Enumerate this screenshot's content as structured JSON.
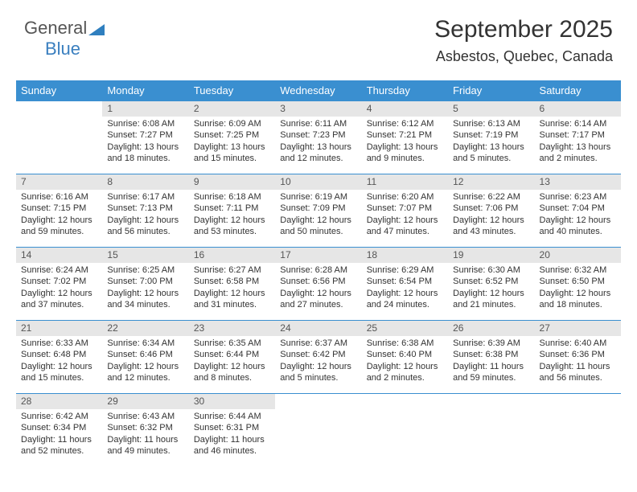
{
  "brand": {
    "part1": "General",
    "part2": "Blue",
    "triangle_color": "#2f7fbf"
  },
  "title": "September 2025",
  "location": "Asbestos, Quebec, Canada",
  "colors": {
    "header_bg": "#3a8fd0",
    "header_fg": "#ffffff",
    "daynum_bg": "#e6e6e6",
    "rule": "#3a8fd0"
  },
  "day_headers": [
    "Sunday",
    "Monday",
    "Tuesday",
    "Wednesday",
    "Thursday",
    "Friday",
    "Saturday"
  ],
  "weeks": [
    [
      {
        "n": "",
        "lines": []
      },
      {
        "n": "1",
        "lines": [
          "Sunrise: 6:08 AM",
          "Sunset: 7:27 PM",
          "Daylight: 13 hours and 18 minutes."
        ]
      },
      {
        "n": "2",
        "lines": [
          "Sunrise: 6:09 AM",
          "Sunset: 7:25 PM",
          "Daylight: 13 hours and 15 minutes."
        ]
      },
      {
        "n": "3",
        "lines": [
          "Sunrise: 6:11 AM",
          "Sunset: 7:23 PM",
          "Daylight: 13 hours and 12 minutes."
        ]
      },
      {
        "n": "4",
        "lines": [
          "Sunrise: 6:12 AM",
          "Sunset: 7:21 PM",
          "Daylight: 13 hours and 9 minutes."
        ]
      },
      {
        "n": "5",
        "lines": [
          "Sunrise: 6:13 AM",
          "Sunset: 7:19 PM",
          "Daylight: 13 hours and 5 minutes."
        ]
      },
      {
        "n": "6",
        "lines": [
          "Sunrise: 6:14 AM",
          "Sunset: 7:17 PM",
          "Daylight: 13 hours and 2 minutes."
        ]
      }
    ],
    [
      {
        "n": "7",
        "lines": [
          "Sunrise: 6:16 AM",
          "Sunset: 7:15 PM",
          "Daylight: 12 hours and 59 minutes."
        ]
      },
      {
        "n": "8",
        "lines": [
          "Sunrise: 6:17 AM",
          "Sunset: 7:13 PM",
          "Daylight: 12 hours and 56 minutes."
        ]
      },
      {
        "n": "9",
        "lines": [
          "Sunrise: 6:18 AM",
          "Sunset: 7:11 PM",
          "Daylight: 12 hours and 53 minutes."
        ]
      },
      {
        "n": "10",
        "lines": [
          "Sunrise: 6:19 AM",
          "Sunset: 7:09 PM",
          "Daylight: 12 hours and 50 minutes."
        ]
      },
      {
        "n": "11",
        "lines": [
          "Sunrise: 6:20 AM",
          "Sunset: 7:07 PM",
          "Daylight: 12 hours and 47 minutes."
        ]
      },
      {
        "n": "12",
        "lines": [
          "Sunrise: 6:22 AM",
          "Sunset: 7:06 PM",
          "Daylight: 12 hours and 43 minutes."
        ]
      },
      {
        "n": "13",
        "lines": [
          "Sunrise: 6:23 AM",
          "Sunset: 7:04 PM",
          "Daylight: 12 hours and 40 minutes."
        ]
      }
    ],
    [
      {
        "n": "14",
        "lines": [
          "Sunrise: 6:24 AM",
          "Sunset: 7:02 PM",
          "Daylight: 12 hours and 37 minutes."
        ]
      },
      {
        "n": "15",
        "lines": [
          "Sunrise: 6:25 AM",
          "Sunset: 7:00 PM",
          "Daylight: 12 hours and 34 minutes."
        ]
      },
      {
        "n": "16",
        "lines": [
          "Sunrise: 6:27 AM",
          "Sunset: 6:58 PM",
          "Daylight: 12 hours and 31 minutes."
        ]
      },
      {
        "n": "17",
        "lines": [
          "Sunrise: 6:28 AM",
          "Sunset: 6:56 PM",
          "Daylight: 12 hours and 27 minutes."
        ]
      },
      {
        "n": "18",
        "lines": [
          "Sunrise: 6:29 AM",
          "Sunset: 6:54 PM",
          "Daylight: 12 hours and 24 minutes."
        ]
      },
      {
        "n": "19",
        "lines": [
          "Sunrise: 6:30 AM",
          "Sunset: 6:52 PM",
          "Daylight: 12 hours and 21 minutes."
        ]
      },
      {
        "n": "20",
        "lines": [
          "Sunrise: 6:32 AM",
          "Sunset: 6:50 PM",
          "Daylight: 12 hours and 18 minutes."
        ]
      }
    ],
    [
      {
        "n": "21",
        "lines": [
          "Sunrise: 6:33 AM",
          "Sunset: 6:48 PM",
          "Daylight: 12 hours and 15 minutes."
        ]
      },
      {
        "n": "22",
        "lines": [
          "Sunrise: 6:34 AM",
          "Sunset: 6:46 PM",
          "Daylight: 12 hours and 12 minutes."
        ]
      },
      {
        "n": "23",
        "lines": [
          "Sunrise: 6:35 AM",
          "Sunset: 6:44 PM",
          "Daylight: 12 hours and 8 minutes."
        ]
      },
      {
        "n": "24",
        "lines": [
          "Sunrise: 6:37 AM",
          "Sunset: 6:42 PM",
          "Daylight: 12 hours and 5 minutes."
        ]
      },
      {
        "n": "25",
        "lines": [
          "Sunrise: 6:38 AM",
          "Sunset: 6:40 PM",
          "Daylight: 12 hours and 2 minutes."
        ]
      },
      {
        "n": "26",
        "lines": [
          "Sunrise: 6:39 AM",
          "Sunset: 6:38 PM",
          "Daylight: 11 hours and 59 minutes."
        ]
      },
      {
        "n": "27",
        "lines": [
          "Sunrise: 6:40 AM",
          "Sunset: 6:36 PM",
          "Daylight: 11 hours and 56 minutes."
        ]
      }
    ],
    [
      {
        "n": "28",
        "lines": [
          "Sunrise: 6:42 AM",
          "Sunset: 6:34 PM",
          "Daylight: 11 hours and 52 minutes."
        ]
      },
      {
        "n": "29",
        "lines": [
          "Sunrise: 6:43 AM",
          "Sunset: 6:32 PM",
          "Daylight: 11 hours and 49 minutes."
        ]
      },
      {
        "n": "30",
        "lines": [
          "Sunrise: 6:44 AM",
          "Sunset: 6:31 PM",
          "Daylight: 11 hours and 46 minutes."
        ]
      },
      {
        "n": "",
        "lines": []
      },
      {
        "n": "",
        "lines": []
      },
      {
        "n": "",
        "lines": []
      },
      {
        "n": "",
        "lines": []
      }
    ]
  ]
}
